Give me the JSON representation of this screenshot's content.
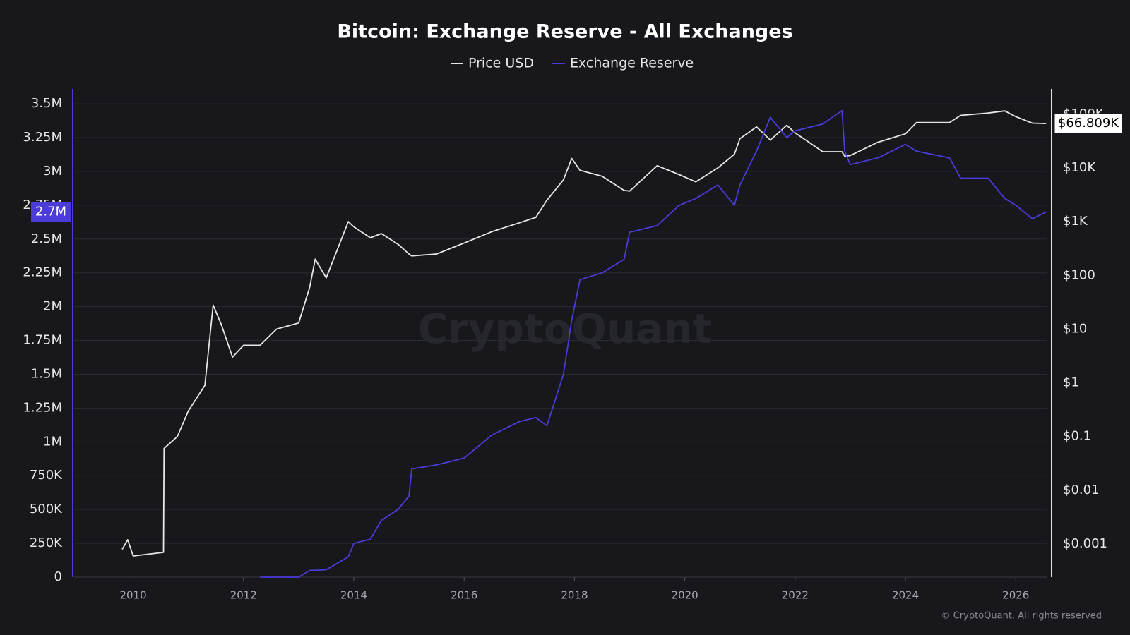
{
  "chart_data": {
    "type": "line",
    "title": "Bitcoin: Exchange Reserve - All Exchanges",
    "watermark": "CryptoQuant",
    "copyright": "© CryptoQuant. All rights reserved",
    "legend": "top",
    "grid": true,
    "x": [
      2009.8,
      2009.9,
      2010.0,
      2010.55,
      2010.56,
      2010.8,
      2011.0,
      2011.3,
      2011.45,
      2011.6,
      2011.8,
      2012.0,
      2012.3,
      2012.6,
      2013.0,
      2013.2,
      2013.3,
      2013.5,
      2013.9,
      2014.0,
      2014.3,
      2014.5,
      2014.8,
      2015.0,
      2015.05,
      2015.5,
      2016.0,
      2016.5,
      2017.0,
      2017.3,
      2017.5,
      2017.8,
      2017.95,
      2018.1,
      2018.5,
      2018.9,
      2019.0,
      2019.5,
      2019.9,
      2020.2,
      2020.6,
      2020.9,
      2021.0,
      2021.3,
      2021.55,
      2021.85,
      2022.0,
      2022.5,
      2022.85,
      2022.9,
      2023.0,
      2023.5,
      2024.0,
      2024.2,
      2024.8,
      2025.0,
      2025.5,
      2025.8,
      2026.0,
      2026.3,
      2026.55
    ],
    "xlim": [
      2008.93,
      2026.56
    ],
    "xticks": [
      2010,
      2012,
      2014,
      2016,
      2018,
      2020,
      2022,
      2024,
      2026
    ],
    "ylim": [
      0,
      3610000
    ],
    "yticks": [
      {
        "value": 0,
        "label": "0"
      },
      {
        "value": 250000,
        "label": "250K"
      },
      {
        "value": 500000,
        "label": "500K"
      },
      {
        "value": 750000,
        "label": "750K"
      },
      {
        "value": 1000000,
        "label": "1M"
      },
      {
        "value": 1250000,
        "label": "1.25M"
      },
      {
        "value": 1500000,
        "label": "1.5M"
      },
      {
        "value": 1750000,
        "label": "1.75M"
      },
      {
        "value": 2000000,
        "label": "2M"
      },
      {
        "value": 2250000,
        "label": "2.25M"
      },
      {
        "value": 2500000,
        "label": "2.5M"
      },
      {
        "value": 2750000,
        "label": "2.75M"
      },
      {
        "value": 3000000,
        "label": "3M"
      },
      {
        "value": 3250000,
        "label": "3.25M"
      },
      {
        "value": 3500000,
        "label": "3.5M"
      }
    ],
    "y2lim": [
      0.000242,
      295000
    ],
    "y2_log": true,
    "y2ticks": [
      {
        "value": 0.001,
        "label": "$0.001"
      },
      {
        "value": 0.01,
        "label": "$0.01"
      },
      {
        "value": 0.1,
        "label": "$0.1"
      },
      {
        "value": 1,
        "label": "$1"
      },
      {
        "value": 10,
        "label": "$10"
      },
      {
        "value": 100,
        "label": "$100"
      },
      {
        "value": 1000,
        "label": "$1K"
      },
      {
        "value": 10000,
        "label": "$10K"
      },
      {
        "value": 100000,
        "label": "$100K"
      }
    ],
    "series": [
      {
        "name": "Price USD",
        "color": "#e6e6e6",
        "axis": "y2",
        "end_label": "$66.809K",
        "values": [
          0.0008,
          0.0012,
          0.0006,
          0.0007,
          0.06,
          0.1,
          0.3,
          0.9,
          28,
          12,
          3,
          5,
          5,
          10,
          13,
          60,
          200,
          90,
          1000,
          800,
          500,
          600,
          380,
          250,
          230,
          250,
          400,
          650,
          950,
          1200,
          2500,
          6000,
          15000,
          9000,
          7000,
          3800,
          3700,
          11000,
          7500,
          5500,
          10000,
          18000,
          35000,
          58000,
          33000,
          62000,
          45000,
          20000,
          20000,
          16500,
          17000,
          30000,
          43000,
          70000,
          70000,
          95000,
          105000,
          115000,
          90000,
          68000,
          66809
        ]
      },
      {
        "name": "Exchange Reserve",
        "color": "#4b3bd9",
        "axis": "y",
        "end_label": "2.7M",
        "values": [
          null,
          null,
          null,
          null,
          null,
          null,
          null,
          null,
          null,
          null,
          null,
          null,
          0,
          0,
          0,
          50000,
          50000,
          55000,
          150000,
          250000,
          280000,
          420000,
          500000,
          600000,
          800000,
          830000,
          880000,
          1050000,
          1150000,
          1180000,
          1120000,
          1500000,
          1900000,
          2200000,
          2250000,
          2350000,
          2550000,
          2600000,
          2750000,
          2800000,
          2900000,
          2750000,
          2900000,
          3150000,
          3400000,
          3250000,
          3300000,
          3350000,
          3450000,
          3150000,
          3050000,
          3100000,
          3200000,
          3150000,
          3100000,
          2950000,
          2950000,
          2800000,
          2750000,
          2650000,
          2700000
        ]
      }
    ]
  }
}
